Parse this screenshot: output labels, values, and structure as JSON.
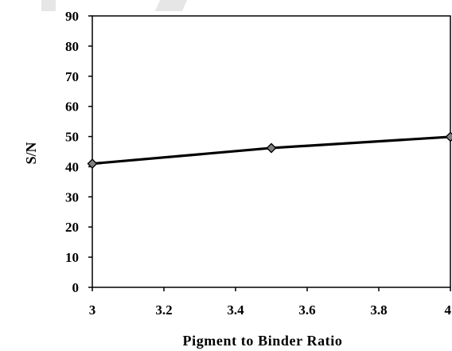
{
  "chart_data": {
    "type": "line",
    "title": "",
    "xlabel": "Pigment to Binder Ratio",
    "ylabel": "S/N",
    "xlim": [
      3,
      4
    ],
    "ylim": [
      0,
      90
    ],
    "x_ticks": [
      "3",
      "3.2",
      "3.4",
      "3.6",
      "3.8",
      "4"
    ],
    "y_ticks": [
      "0",
      "10",
      "20",
      "30",
      "40",
      "50",
      "60",
      "70",
      "80",
      "90"
    ],
    "grid": false,
    "legend": "none",
    "series": [
      {
        "x": [
          3,
          3.5,
          4
        ],
        "y": [
          41,
          46.2,
          49.9
        ],
        "color": "#000000",
        "marker": "diamond",
        "marker_color": "#808080"
      }
    ]
  }
}
